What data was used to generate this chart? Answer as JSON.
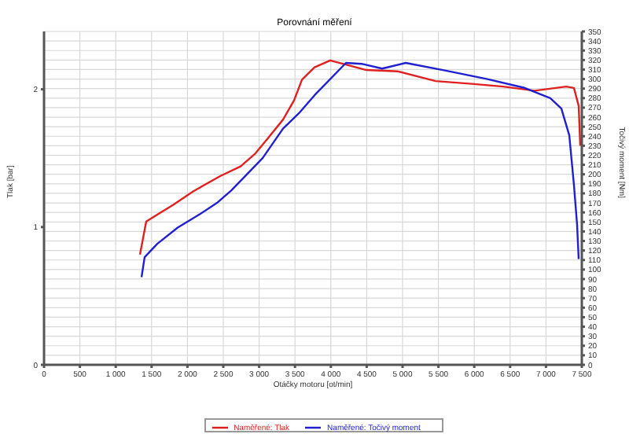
{
  "chart_data": {
    "type": "line",
    "title": "Porovnání měření",
    "xlabel": "Otáčky motoru [ot/min]",
    "ylabel": "Tlak [bar]",
    "y2label": "Točivý moment [Nm]",
    "xlim": [
      0,
      7500
    ],
    "xticks": [
      0,
      500,
      {
        "value": 1000,
        "label": "1 000"
      },
      {
        "value": 1500,
        "label": "1 500"
      },
      {
        "value": 2000,
        "label": "2 000"
      },
      {
        "value": 2500,
        "label": "2 500"
      },
      {
        "value": 3000,
        "label": "3 000"
      },
      {
        "value": 3500,
        "label": "3 500"
      },
      {
        "value": 4000,
        "label": "4 000"
      },
      {
        "value": 4500,
        "label": "4 500"
      },
      {
        "value": 5000,
        "label": "5 000"
      },
      {
        "value": 5500,
        "label": "5 500"
      },
      {
        "value": 6000,
        "label": "6 000"
      },
      {
        "value": 6500,
        "label": "6 500"
      },
      {
        "value": 7000,
        "label": "7 000"
      },
      {
        "value": 7500,
        "label": "7 500"
      }
    ],
    "ylim": [
      0,
      2.42
    ],
    "yticks": [
      0,
      1,
      2
    ],
    "y2lim": [
      0,
      350
    ],
    "y2ticks": [
      0,
      10,
      20,
      30,
      40,
      50,
      60,
      70,
      80,
      90,
      100,
      110,
      120,
      130,
      140,
      150,
      160,
      170,
      180,
      190,
      200,
      210,
      220,
      230,
      240,
      250,
      260,
      270,
      280,
      290,
      300,
      310,
      320,
      330,
      340,
      350
    ],
    "grid": true,
    "legend": "bottom",
    "marker": "none",
    "line_style": "solid",
    "series": [
      {
        "name": "Naměřené: Tlak",
        "color": "#e02020",
        "axis": "y",
        "x": [
          1338,
          1425,
          1579,
          1798,
          2083,
          2456,
          2741,
          2939,
          3114,
          3333,
          3487,
          3597,
          3772,
          3991,
          4496,
          4934,
          5461,
          5965,
          6404,
          6842,
          7281,
          7390,
          7456,
          7478
        ],
        "values": [
          0.8,
          1.04,
          1.09,
          1.16,
          1.26,
          1.37,
          1.44,
          1.53,
          1.64,
          1.78,
          1.92,
          2.07,
          2.16,
          2.21,
          2.14,
          2.13,
          2.06,
          2.04,
          2.02,
          1.99,
          2.02,
          2.01,
          1.88,
          1.59
        ]
      },
      {
        "name": "Naměřené: Točivý moment",
        "color": "#2020d0",
        "axis": "y2",
        "x": [
          1360,
          1403,
          1579,
          1864,
          2171,
          2412,
          2610,
          3048,
          3333,
          3553,
          3772,
          4211,
          4430,
          4715,
          5044,
          5592,
          6184,
          6689,
          7061,
          7215,
          7325,
          7390,
          7434,
          7456
        ],
        "values": [
          92,
          113,
          127,
          144,
          158,
          170,
          183,
          217,
          248,
          264,
          283,
          317,
          316,
          311,
          317,
          309,
          300,
          291,
          280,
          269,
          241,
          189,
          147,
          111
        ]
      }
    ]
  }
}
